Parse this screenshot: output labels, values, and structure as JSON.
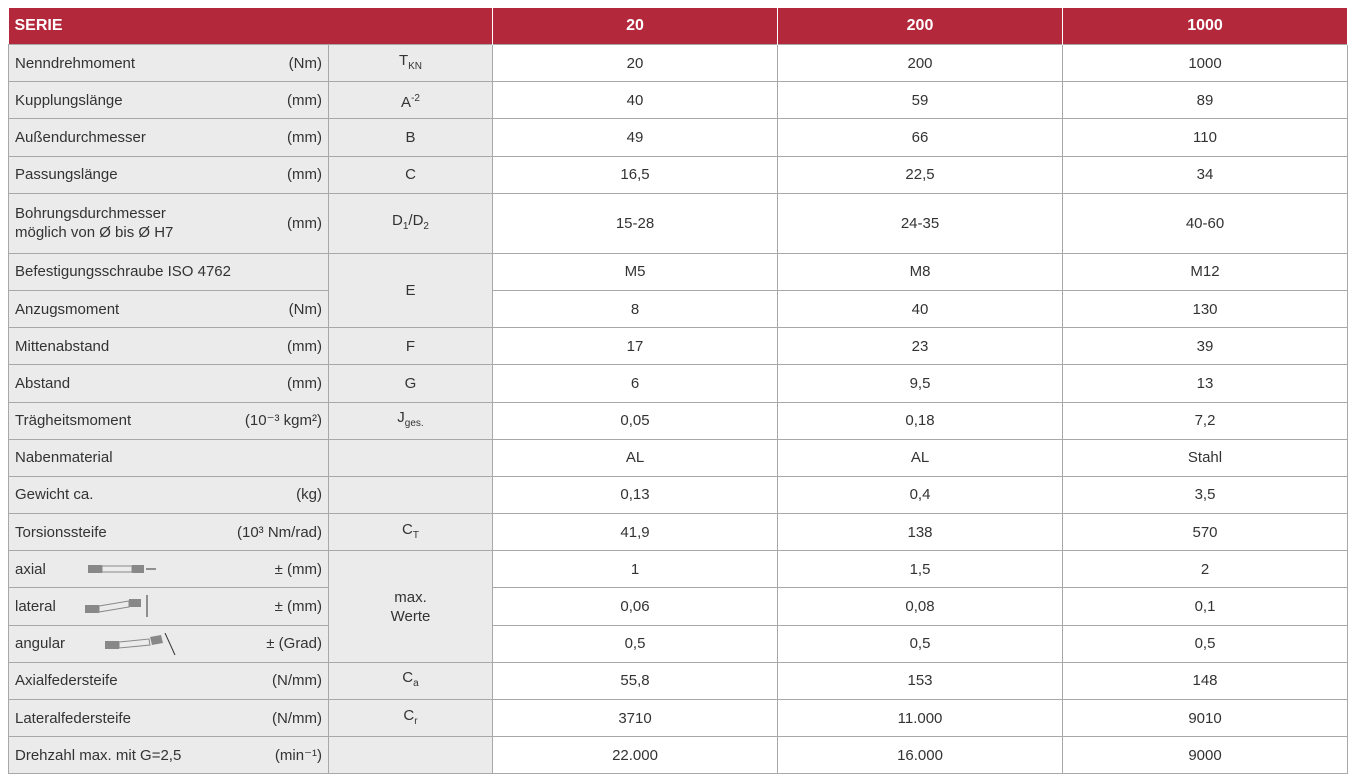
{
  "table": {
    "header": [
      "SERIE",
      "20",
      "200",
      "1000"
    ],
    "rows": [
      {
        "label": "Nenndrehmoment",
        "unit": "(Nm)",
        "symbol": [
          {
            "text": "T"
          },
          {
            "sub": "KN"
          }
        ],
        "values": [
          "20",
          "200",
          "1000"
        ]
      },
      {
        "label": "Kupplungslänge",
        "unit": "(mm)",
        "symbol": [
          {
            "text": "A"
          },
          {
            "sup": "-2"
          }
        ],
        "values": [
          "40",
          "59",
          "89"
        ]
      },
      {
        "label": "Außendurchmesser",
        "unit": "(mm)",
        "symbol": [
          {
            "text": "B"
          }
        ],
        "values": [
          "49",
          "66",
          "110"
        ]
      },
      {
        "label": "Passungslänge",
        "unit": "(mm)",
        "symbol": [
          {
            "text": "C"
          }
        ],
        "values": [
          "16,5",
          "22,5",
          "34"
        ]
      },
      {
        "label": "Bohrungsdurchmesser\nmöglich von Ø bis Ø H7",
        "unit": "(mm)",
        "symbol": [
          {
            "text": "D"
          },
          {
            "sub": "1"
          },
          {
            "text": "/D"
          },
          {
            "sub": "2"
          }
        ],
        "values": [
          "15-28",
          "24-35",
          "40-60"
        ],
        "tall": true
      },
      {
        "label": "Befestigungsschraube ISO 4762",
        "symbol": [
          {
            "text": "E"
          }
        ],
        "symbol_span": 2,
        "values": [
          "M5",
          "M8",
          "M12"
        ]
      },
      {
        "label": "Anzugsmoment",
        "unit": "(Nm)",
        "values": [
          "8",
          "40",
          "130"
        ]
      },
      {
        "label": "Mittenabstand",
        "unit": "(mm)",
        "symbol": [
          {
            "text": "F"
          }
        ],
        "values": [
          "17",
          "23",
          "39"
        ]
      },
      {
        "label": "Abstand",
        "unit": "(mm)",
        "symbol": [
          {
            "text": "G"
          }
        ],
        "values": [
          "6",
          "9,5",
          "13"
        ]
      },
      {
        "label": "Trägheitsmoment",
        "unit": "(10⁻³ kgm²)",
        "symbol": [
          {
            "text": "J"
          },
          {
            "sub": "ges."
          }
        ],
        "values": [
          "0,05",
          "0,18",
          "7,2"
        ]
      },
      {
        "label": "Nabenmaterial",
        "symbol": [],
        "values": [
          "AL",
          "AL",
          "Stahl"
        ]
      },
      {
        "label": "Gewicht ca.",
        "unit": "(kg)",
        "symbol": [],
        "values": [
          "0,13",
          "0,4",
          "3,5"
        ]
      },
      {
        "label": "Torsionssteife",
        "unit": "(10³ Nm/rad)",
        "symbol": [
          {
            "text": "C"
          },
          {
            "sub": "T"
          }
        ],
        "values": [
          "41,9",
          "138",
          "570"
        ]
      },
      {
        "label": "axial",
        "unit": "±  (mm)",
        "symbol": [
          {
            "text": "max.\nWerte"
          }
        ],
        "symbol_span": 3,
        "values": [
          "1",
          "1,5",
          "2"
        ]
      },
      {
        "label": "lateral",
        "unit": "±  (mm)",
        "values": [
          "0,06",
          "0,08",
          "0,1"
        ]
      },
      {
        "label": "angular",
        "unit": "±  (Grad)",
        "values": [
          "0,5",
          "0,5",
          "0,5"
        ]
      },
      {
        "label": "Axialfedersteife",
        "unit": "(N/mm)",
        "symbol": [
          {
            "text": "C"
          },
          {
            "sub": "a"
          }
        ],
        "values": [
          "55,8",
          "153",
          "148"
        ]
      },
      {
        "label": "Lateralfedersteife",
        "unit": "(N/mm)",
        "symbol": [
          {
            "text": "C"
          },
          {
            "sub": "r"
          }
        ],
        "values": [
          "3710",
          "11.000",
          "9010"
        ]
      },
      {
        "label": "Drehzahl max. mit G=2,5",
        "unit": "(min⁻¹)",
        "symbol": [],
        "values": [
          "22.000",
          "16.000",
          "9000"
        ]
      }
    ]
  }
}
